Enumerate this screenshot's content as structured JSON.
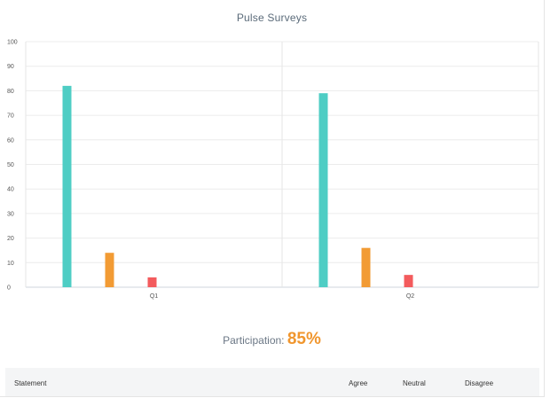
{
  "chart_data": {
    "type": "bar",
    "title": "Pulse Surveys",
    "categories": [
      "Q1",
      "Q2"
    ],
    "series": [
      {
        "values": [
          82,
          79
        ],
        "color": "#4ecdc4"
      },
      {
        "values": [
          14,
          16
        ],
        "color": "#f29b34"
      },
      {
        "values": [
          4,
          5
        ],
        "color": "#f35b5d"
      }
    ],
    "ylim": [
      0,
      100
    ],
    "yticks": [
      0,
      10,
      20,
      30,
      40,
      50,
      60,
      70,
      80,
      90,
      100
    ],
    "grid": true,
    "xlabel": "",
    "ylabel": ""
  },
  "participation": {
    "label": "Participation:",
    "value": "85%"
  },
  "table": {
    "columns": [
      "Statement",
      "Agree",
      "Neutral",
      "Disagree"
    ]
  }
}
